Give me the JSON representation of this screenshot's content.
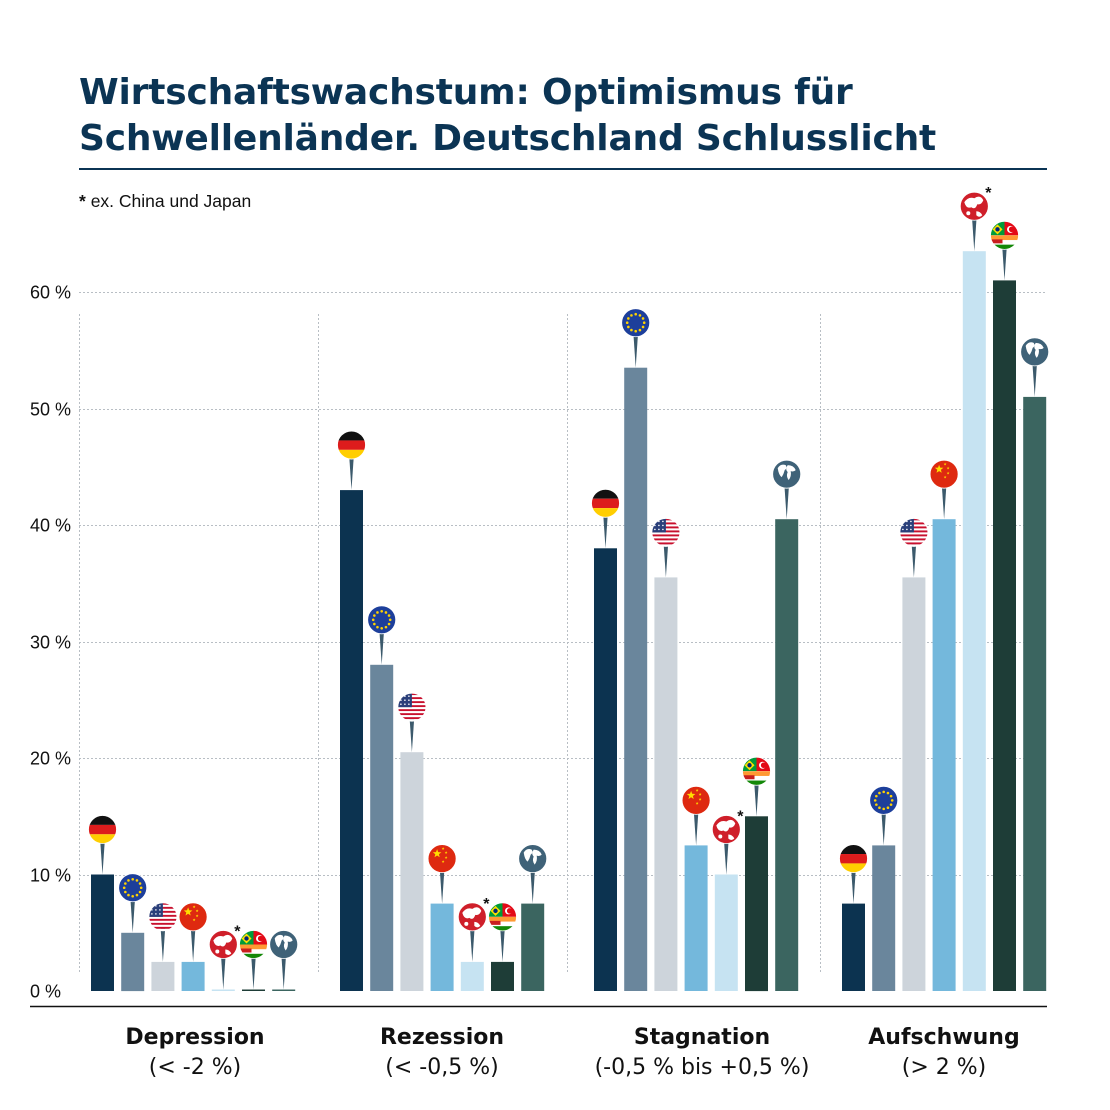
{
  "title": "Wirtschaftswachstum: Optimismus für Schwellenländer. Deutschland Schlusslicht",
  "note": {
    "mark": "*",
    "text": "ex. China und Japan"
  },
  "colors": {
    "title": "#0b3454",
    "germany": "#0c3350",
    "eu": "#6a869c",
    "usa": "#cdd4db",
    "china": "#74b8dc",
    "asia_pacific": "#c6e3f2",
    "emerging": "#1e3d37",
    "world": "#3b6560"
  },
  "chart_data": {
    "type": "bar",
    "title": "Wirtschaftswachstum: Optimismus für Schwellenländer. Deutschland Schlusslicht",
    "xlabel": "",
    "ylabel": "",
    "ylim": [
      0,
      60
    ],
    "y_ticks": [
      {
        "value": 0,
        "label": "0 %"
      },
      {
        "value": 10,
        "label": "10 %"
      },
      {
        "value": 20,
        "label": "20 %"
      },
      {
        "value": 30,
        "label": "30 %"
      },
      {
        "value": 40,
        "label": "40 %"
      },
      {
        "value": 50,
        "label": "50 %"
      },
      {
        "value": 60,
        "label": "60 %"
      }
    ],
    "grid": true,
    "legend": "none (series marked by flag icons above bars)",
    "categories": [
      {
        "name": "Depression",
        "range": "(< -2 %)"
      },
      {
        "name": "Rezession",
        "range": "(< -0,5 %)"
      },
      {
        "name": "Stagnation",
        "range": "(-0,5 % bis +0,5 %)"
      },
      {
        "name": "Aufschwung",
        "range": "(> 2 %)"
      }
    ],
    "series": [
      {
        "icon": "germany-flag-icon",
        "color": "#0c3350",
        "values": [
          10,
          43,
          38,
          7.5
        ]
      },
      {
        "icon": "eu-flag-icon",
        "color": "#6a869c",
        "values": [
          5,
          28,
          53.5,
          12.5
        ]
      },
      {
        "icon": "usa-flag-icon",
        "color": "#cdd4db",
        "values": [
          2.5,
          20.5,
          35.5,
          35.5
        ]
      },
      {
        "icon": "china-flag-icon",
        "color": "#74b8dc",
        "values": [
          2.5,
          7.5,
          12.5,
          40.5
        ]
      },
      {
        "icon": "asia-pacific-map-icon",
        "color": "#c6e3f2",
        "values": [
          0,
          2.5,
          10,
          63.5
        ],
        "asterisk": true
      },
      {
        "icon": "emerging-markets-flags-icon",
        "color": "#1e3d37",
        "values": [
          0,
          2.5,
          15,
          61
        ]
      },
      {
        "icon": "globe-icon",
        "color": "#3b6560",
        "values": [
          0,
          7.5,
          40.5,
          51
        ]
      }
    ]
  }
}
